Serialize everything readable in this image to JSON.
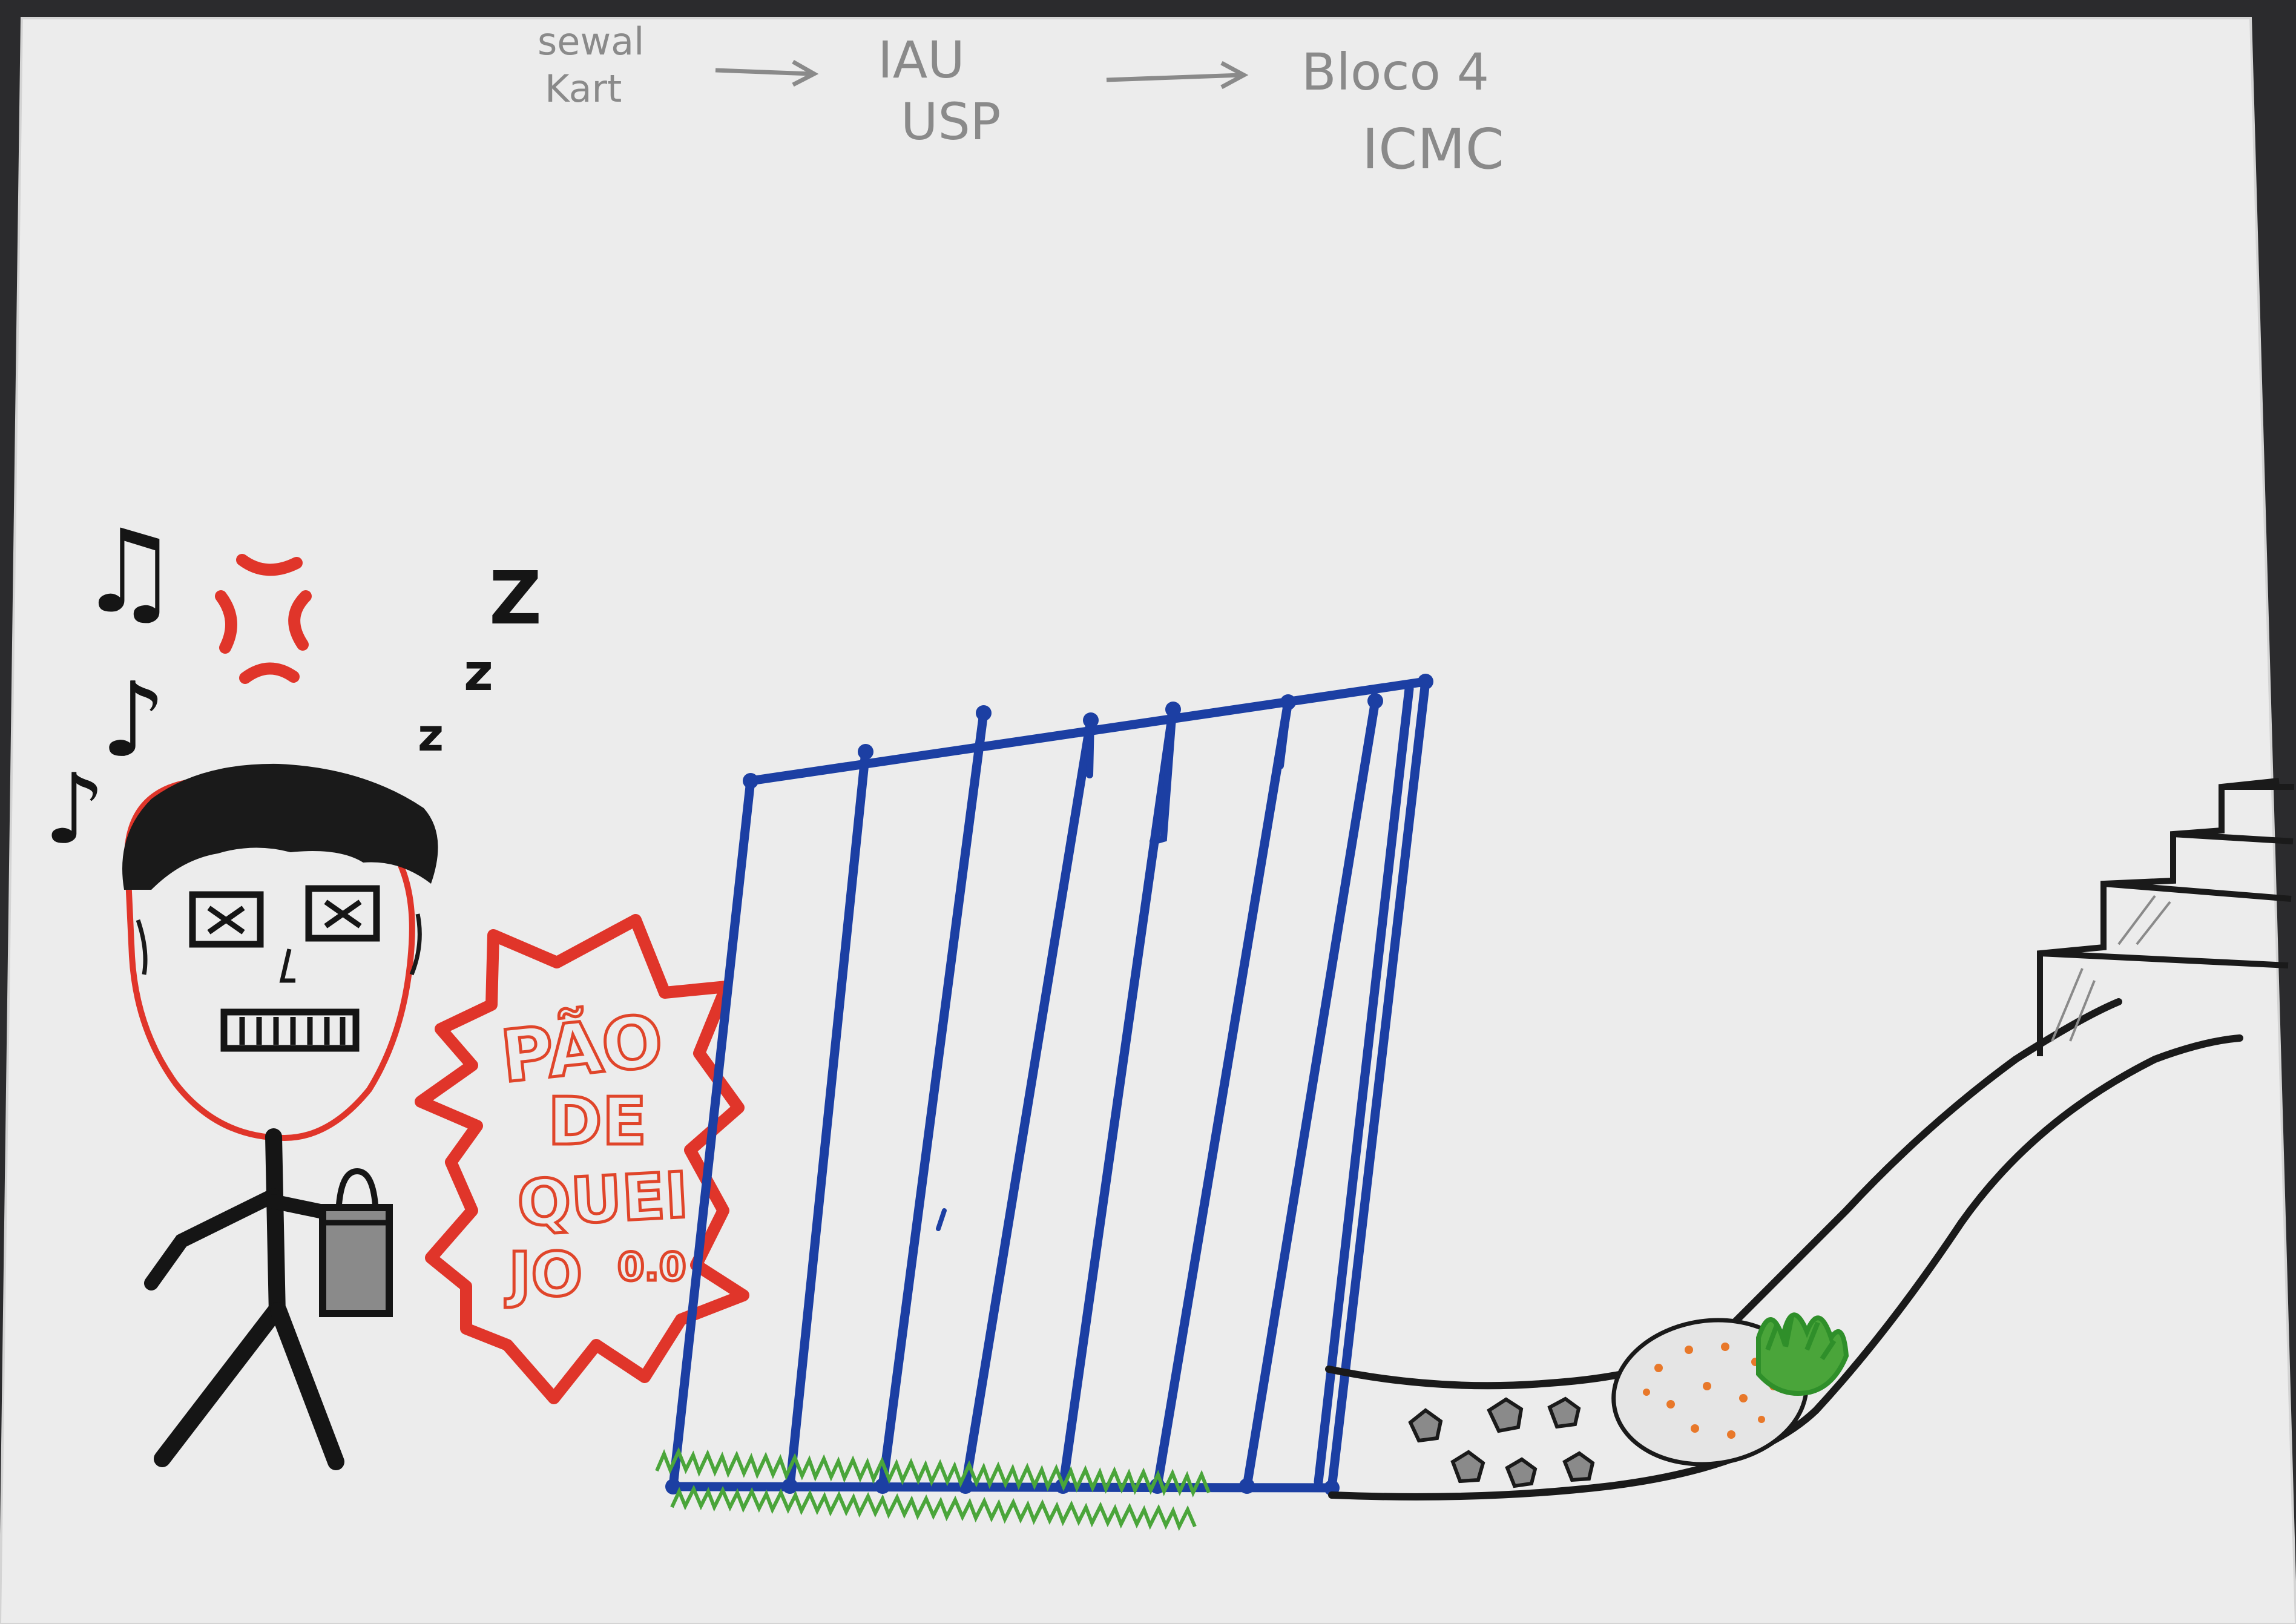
{
  "route": {
    "step1_line1": "sewal",
    "step1_line2": "Kart",
    "step2_line1": "IAU",
    "step2_line2": "USP",
    "step3_line1": "Bloco 4",
    "step3_line2": "ICMC"
  },
  "sleep_marks": [
    "Z",
    "z",
    "z"
  ],
  "music_notes": [
    "♫",
    "♪",
    "♪"
  ],
  "burst_text": {
    "line1": "PÃO",
    "line2": "DE",
    "line3": "QUEI",
    "line4": "JO",
    "tail": "0.0"
  },
  "colors": {
    "paper": "#ebebeb",
    "pencil": "#8a8a8a",
    "ink_black": "#151515",
    "ink_red": "#e0352a",
    "ink_blue": "#1c3fa3",
    "ink_green": "#4aa53a",
    "ink_orange": "#e8782a"
  }
}
